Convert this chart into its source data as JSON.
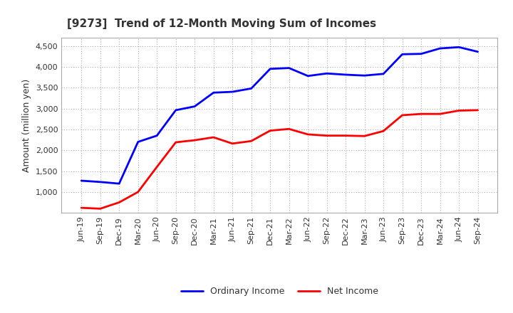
{
  "title": "[9273]  Trend of 12-Month Moving Sum of Incomes",
  "ylabel": "Amount (million yen)",
  "ylim": [
    500,
    4700
  ],
  "yticks": [
    1000,
    1500,
    2000,
    2500,
    3000,
    3500,
    4000,
    4500
  ],
  "background_color": "#ffffff",
  "plot_bg_color": "#ffffff",
  "grid_color": "#aaaaaa",
  "ordinary_income_color": "#0000ff",
  "net_income_color": "#ff0000",
  "line_width": 2.0,
  "labels": [
    "Jun-19",
    "Sep-19",
    "Dec-19",
    "Mar-20",
    "Jun-20",
    "Sep-20",
    "Dec-20",
    "Mar-21",
    "Jun-21",
    "Sep-21",
    "Dec-21",
    "Mar-22",
    "Jun-22",
    "Sep-22",
    "Dec-22",
    "Mar-23",
    "Jun-23",
    "Sep-23",
    "Dec-23",
    "Mar-24",
    "Jun-24",
    "Sep-24"
  ],
  "ordinary_income": [
    1270,
    1240,
    1200,
    2200,
    2350,
    2960,
    3050,
    3380,
    3400,
    3480,
    3950,
    3970,
    3780,
    3840,
    3810,
    3790,
    3830,
    4300,
    4310,
    4440,
    4470,
    4360
  ],
  "net_income": [
    620,
    600,
    750,
    1000,
    1600,
    2190,
    2240,
    2310,
    2160,
    2220,
    2470,
    2510,
    2380,
    2350,
    2350,
    2340,
    2460,
    2840,
    2870,
    2870,
    2950,
    2960
  ],
  "title_fontsize": 11,
  "tick_fontsize": 8,
  "ylabel_fontsize": 9,
  "legend_fontsize": 9
}
